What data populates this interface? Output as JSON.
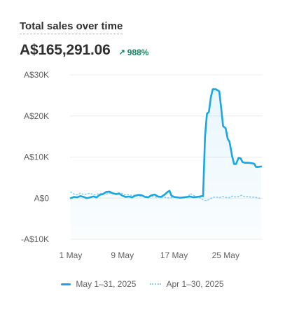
{
  "card": {
    "title": "Total sales over time",
    "total": "A$165,291.06",
    "delta": "988%",
    "delta_icon": "arrow-up-right-icon",
    "delta_color": "#11865c"
  },
  "chart_data": {
    "type": "line",
    "title": "Total sales over time",
    "xlabel": "",
    "ylabel": "",
    "ylim": [
      -10000,
      30000
    ],
    "y_ticks": [
      {
        "value": 30000,
        "label": "A$30K"
      },
      {
        "value": 20000,
        "label": "A$20K"
      },
      {
        "value": 10000,
        "label": "A$10K"
      },
      {
        "value": 0,
        "label": "A$0"
      },
      {
        "value": -10000,
        "label": "-A$10K"
      }
    ],
    "x_ticks": [
      {
        "day": 1,
        "label": "1 May"
      },
      {
        "day": 9,
        "label": "9 May"
      },
      {
        "day": 17,
        "label": "17 May"
      },
      {
        "day": 25,
        "label": "25 May"
      }
    ],
    "grid": true,
    "legend_position": "bottom",
    "series": [
      {
        "name": "May 1–31, 2025",
        "style": "solid",
        "color": "#1aa6e4",
        "points": [
          [
            1,
            0
          ],
          [
            1.5,
            300
          ],
          [
            2,
            200
          ],
          [
            2.5,
            500
          ],
          [
            3,
            300
          ],
          [
            3.5,
            0
          ],
          [
            4,
            200
          ],
          [
            4.5,
            400
          ],
          [
            5,
            200
          ],
          [
            5.5,
            800
          ],
          [
            6,
            1000
          ],
          [
            6.5,
            1500
          ],
          [
            7,
            1600
          ],
          [
            7.5,
            1200
          ],
          [
            8,
            1000
          ],
          [
            8.5,
            1100
          ],
          [
            9,
            600
          ],
          [
            9.5,
            300
          ],
          [
            10,
            400
          ],
          [
            10.5,
            200
          ],
          [
            11,
            600
          ],
          [
            11.5,
            800
          ],
          [
            12,
            700
          ],
          [
            12.5,
            300
          ],
          [
            13,
            200
          ],
          [
            13.5,
            700
          ],
          [
            14,
            900
          ],
          [
            14.5,
            400
          ],
          [
            15,
            300
          ],
          [
            15.5,
            800
          ],
          [
            16,
            1500
          ],
          [
            16.3,
            1800
          ],
          [
            16.6,
            600
          ],
          [
            17,
            300
          ],
          [
            17.5,
            200
          ],
          [
            18,
            100
          ],
          [
            18.5,
            200
          ],
          [
            19,
            300
          ],
          [
            19.5,
            400
          ],
          [
            20,
            200
          ],
          [
            20.5,
            300
          ],
          [
            21,
            400
          ],
          [
            21.3,
            500
          ],
          [
            21.5,
            500
          ],
          [
            21.8,
            15000
          ],
          [
            22.1,
            20500
          ],
          [
            22.4,
            21000
          ],
          [
            22.7,
            24500
          ],
          [
            23,
            26500
          ],
          [
            23.5,
            26500
          ],
          [
            24,
            26000
          ],
          [
            24.3,
            22000
          ],
          [
            24.6,
            17500
          ],
          [
            25,
            17000
          ],
          [
            25.3,
            14500
          ],
          [
            25.6,
            13700
          ],
          [
            26,
            10200
          ],
          [
            26.3,
            8300
          ],
          [
            26.6,
            8300
          ],
          [
            27,
            9800
          ],
          [
            27.3,
            9700
          ],
          [
            27.6,
            8800
          ],
          [
            28,
            8600
          ],
          [
            28.5,
            8600
          ],
          [
            29,
            8500
          ],
          [
            29.4,
            8400
          ],
          [
            29.7,
            7600
          ],
          [
            30,
            7600
          ],
          [
            30.5,
            7700
          ]
        ]
      },
      {
        "name": "Apr 1–30, 2025",
        "style": "dotted",
        "color": "#8fcff0",
        "points": [
          [
            1,
            1500
          ],
          [
            1.5,
            1000
          ],
          [
            2,
            800
          ],
          [
            2.5,
            1200
          ],
          [
            3,
            900
          ],
          [
            3.5,
            1000
          ],
          [
            4,
            1200
          ],
          [
            4.5,
            800
          ],
          [
            5,
            900
          ],
          [
            5.5,
            1100
          ],
          [
            6,
            1200
          ],
          [
            6.5,
            1000
          ],
          [
            7,
            1200
          ],
          [
            7.5,
            1100
          ],
          [
            8,
            900
          ],
          [
            8.5,
            1300
          ],
          [
            9,
            1100
          ],
          [
            9.5,
            800
          ],
          [
            10,
            900
          ],
          [
            10.5,
            600
          ],
          [
            11,
            700
          ],
          [
            11.5,
            500
          ],
          [
            12,
            400
          ],
          [
            12.5,
            500
          ],
          [
            13,
            300
          ],
          [
            13.5,
            400
          ],
          [
            14,
            300
          ],
          [
            14.5,
            200
          ],
          [
            15,
            300
          ],
          [
            15.5,
            200
          ],
          [
            16,
            100
          ],
          [
            16.5,
            100
          ],
          [
            17,
            200
          ],
          [
            17.5,
            100
          ],
          [
            18,
            100
          ],
          [
            18.5,
            50
          ],
          [
            19,
            100
          ],
          [
            19.5,
            1100
          ],
          [
            20,
            700
          ],
          [
            20.5,
            200
          ],
          [
            21,
            100
          ],
          [
            21.5,
            -400
          ],
          [
            22,
            -600
          ],
          [
            22.5,
            -300
          ],
          [
            23,
            200
          ],
          [
            23.5,
            300
          ],
          [
            24,
            100
          ],
          [
            24.5,
            400
          ],
          [
            25,
            200
          ],
          [
            25.5,
            100
          ],
          [
            26,
            500
          ],
          [
            26.5,
            300
          ],
          [
            27,
            400
          ],
          [
            27.5,
            700
          ],
          [
            28,
            300
          ],
          [
            28.5,
            400
          ],
          [
            29,
            200
          ],
          [
            29.5,
            300
          ],
          [
            30,
            0
          ],
          [
            30.5,
            0
          ]
        ]
      }
    ]
  }
}
